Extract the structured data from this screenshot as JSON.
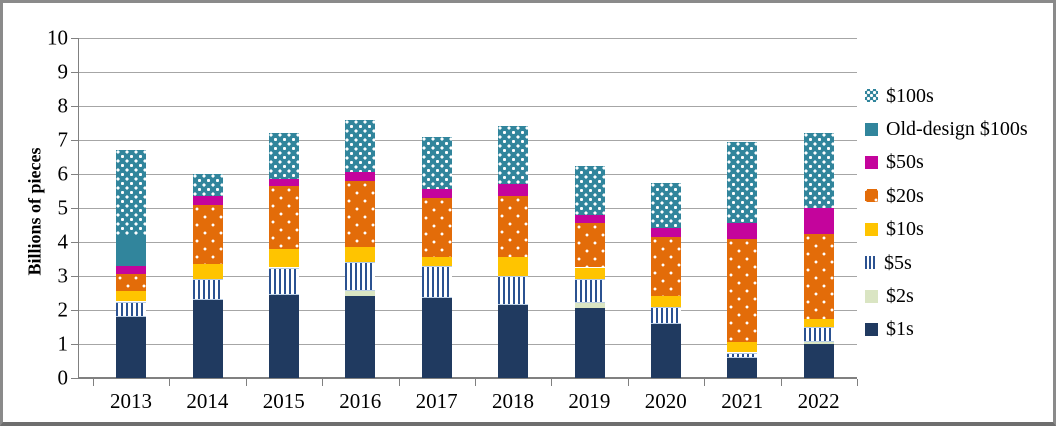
{
  "frame": {
    "border_color": "#8a8a8a",
    "background": "#ffffff"
  },
  "chart_data": {
    "type": "bar",
    "stacked": true,
    "title": "",
    "xlabel": "",
    "ylabel": "Billions of pieces",
    "ylim": [
      0,
      10
    ],
    "ytick_interval": 1,
    "yticks": [
      "0",
      "1",
      "2",
      "3",
      "4",
      "5",
      "6",
      "7",
      "8",
      "9",
      "10"
    ],
    "grid": "horizontal",
    "gridline_color": "#a6a6a6",
    "axis_color": "#808080",
    "categories": [
      "2013",
      "2014",
      "2015",
      "2016",
      "2017",
      "2018",
      "2019",
      "2020",
      "2021",
      "2022"
    ],
    "series": [
      {
        "name": "$1s",
        "key": "s1",
        "color": "#203a60",
        "pattern": "solid",
        "values": [
          1.8,
          2.3,
          2.45,
          2.4,
          2.35,
          2.15,
          2.05,
          1.6,
          0.6,
          1.0
        ]
      },
      {
        "name": "$2s",
        "key": "s2",
        "color": "#dae5c3",
        "pattern": "solid",
        "values": [
          0,
          0,
          0,
          0.15,
          0,
          0,
          0.15,
          0,
          0,
          0.05
        ]
      },
      {
        "name": "$5s",
        "key": "s5",
        "color": "#2b5291",
        "pattern": "vertical-stripes",
        "values": [
          0.45,
          0.6,
          0.8,
          0.85,
          0.95,
          0.85,
          0.7,
          0.5,
          0.15,
          0.45
        ]
      },
      {
        "name": "$10s",
        "key": "s10",
        "color": "#ffc400",
        "pattern": "solid",
        "values": [
          0.3,
          0.45,
          0.55,
          0.45,
          0.25,
          0.55,
          0.35,
          0.3,
          0.3,
          0.25
        ]
      },
      {
        "name": "$20s",
        "key": "s20",
        "color": "#e36c09",
        "pattern": "sparse-white-dots",
        "values": [
          0.5,
          1.75,
          1.85,
          1.95,
          1.75,
          1.8,
          1.3,
          1.75,
          3.05,
          2.5
        ]
      },
      {
        "name": "$50s",
        "key": "s50",
        "color": "#c4049c",
        "pattern": "solid",
        "values": [
          0.25,
          0.25,
          0.2,
          0.25,
          0.25,
          0.35,
          0.25,
          0.25,
          0.45,
          0.75
        ]
      },
      {
        "name": "Old-design $100s",
        "key": "old100",
        "color": "#31859c",
        "pattern": "solid",
        "values": [
          0.9,
          0,
          0,
          0,
          0,
          0,
          0,
          0,
          0,
          0
        ]
      },
      {
        "name": "$100s",
        "key": "s100",
        "color": "#31859c",
        "pattern": "dense-white-dots",
        "values": [
          2.5,
          0.65,
          1.35,
          1.55,
          1.55,
          1.7,
          1.45,
          1.35,
          2.4,
          2.2
        ]
      }
    ],
    "totals": [
      6.7,
      6.0,
      7.2,
      7.6,
      7.1,
      7.4,
      6.25,
      5.75,
      6.95,
      7.2
    ],
    "legend": {
      "position": "right",
      "order_top_to_bottom": [
        "$100s",
        "Old-design $100s",
        "$50s",
        "$20s",
        "$10s",
        "$5s",
        "$2s",
        "$1s"
      ]
    }
  }
}
